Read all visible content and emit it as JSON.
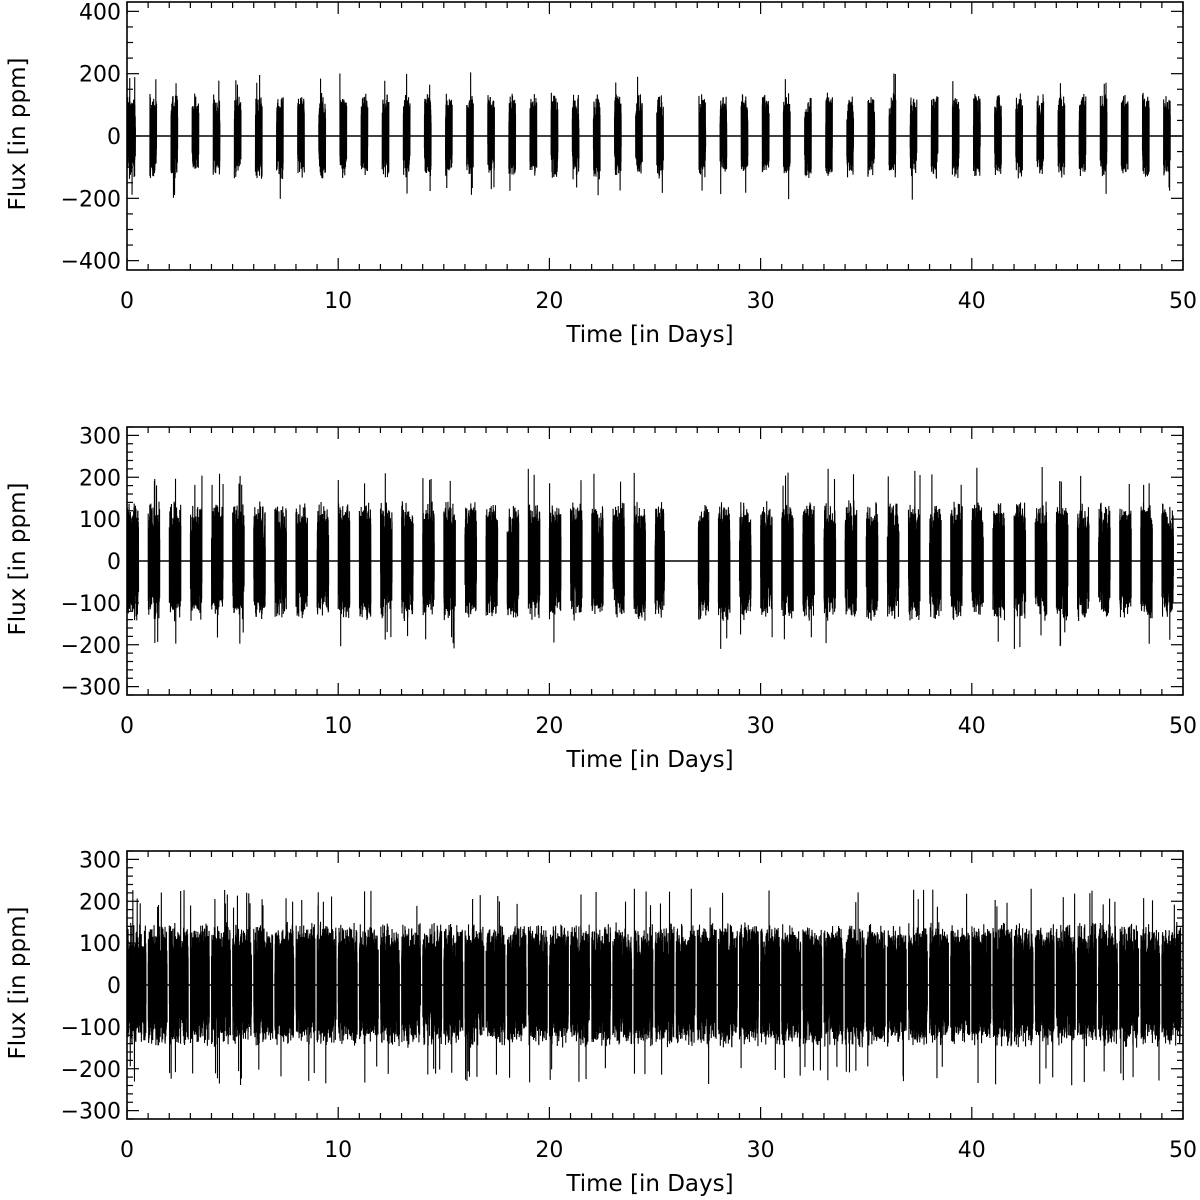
{
  "chart_data": [
    {
      "type": "line",
      "title": "",
      "xlabel": "Time [in Days]",
      "ylabel": "Flux [in ppm]",
      "xlim": [
        0,
        50
      ],
      "ylim": [
        -430,
        430
      ],
      "x_ticks": [
        0,
        10,
        20,
        30,
        40,
        50
      ],
      "x_tick_labels": [
        "0",
        "10",
        "20",
        "30",
        "40",
        "50"
      ],
      "y_ticks": [
        -400,
        -200,
        0,
        200,
        400
      ],
      "y_tick_labels": [
        "−400",
        "−200",
        "0",
        "200",
        "400"
      ],
      "zero_line": true,
      "grid": false,
      "color": "#000000",
      "signal": {
        "description_type": "gapped bursts",
        "period_days": 1.0,
        "window_days": 0.32,
        "window_offset_days": 1.08,
        "first_day": 0.0,
        "last_day": 49.6,
        "gap_start_days": 25.45,
        "gap_end_days": 27.05,
        "typical_amplitude_ppm": 110,
        "max_amplitude_ppm": 205,
        "min_amplitude_ppm": -205
      }
    },
    {
      "type": "line",
      "title": "",
      "xlabel": "Time [in Days]",
      "ylabel": "Flux [in ppm]",
      "xlim": [
        0,
        50
      ],
      "ylim": [
        -320,
        320
      ],
      "x_ticks": [
        0,
        10,
        20,
        30,
        40,
        50
      ],
      "x_tick_labels": [
        "0",
        "10",
        "20",
        "30",
        "40",
        "50"
      ],
      "y_ticks": [
        -300,
        -200,
        -100,
        0,
        100,
        200,
        300
      ],
      "y_tick_labels": [
        "−300",
        "−200",
        "−100",
        "0",
        "100",
        "200",
        "300"
      ],
      "zero_line": true,
      "grid": false,
      "color": "#000000",
      "signal": {
        "description_type": "gapped bursts",
        "period_days": 1.0,
        "window_days": 0.55,
        "window_offset_days": 1.0,
        "first_day": 0.0,
        "last_day": 49.8,
        "gap_start_days": 25.45,
        "gap_end_days": 27.05,
        "typical_amplitude_ppm": 115,
        "max_amplitude_ppm": 225,
        "min_amplitude_ppm": -210
      }
    },
    {
      "type": "line",
      "title": "",
      "xlabel": "Time [in Days]",
      "ylabel": "Flux [in ppm]",
      "xlim": [
        0,
        50
      ],
      "ylim": [
        -320,
        320
      ],
      "x_ticks": [
        0,
        10,
        20,
        30,
        40,
        50
      ],
      "x_tick_labels": [
        "0",
        "10",
        "20",
        "30",
        "40",
        "50"
      ],
      "y_ticks": [
        -300,
        -200,
        -100,
        0,
        100,
        200,
        300
      ],
      "y_tick_labels": [
        "−300",
        "−200",
        "−100",
        "0",
        "100",
        "200",
        "300"
      ],
      "zero_line": true,
      "grid": false,
      "color": "#000000",
      "signal": {
        "description_type": "near-continuous",
        "period_days": 1.0,
        "window_days": 0.9,
        "window_offset_days": 0.0,
        "first_day": 0.0,
        "last_day": 49.9,
        "gap_start_days": null,
        "gap_end_days": null,
        "typical_amplitude_ppm": 120,
        "max_amplitude_ppm": 230,
        "min_amplitude_ppm": -240
      }
    }
  ]
}
